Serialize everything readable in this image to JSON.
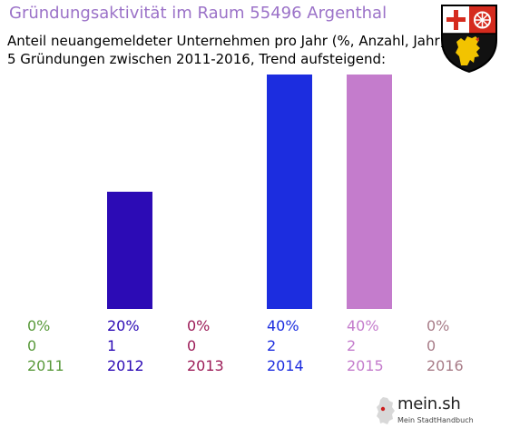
{
  "header": {
    "title": "Gründungsaktivität im Raum 55496 Argenthal",
    "subtitle_line1": "Anteil neuangemeldeter Unternehmen pro Jahr (%, Anzahl, Jahr)",
    "subtitle_line2": "5 Gründungen zwischen 2011-2016, Trend aufsteigend:"
  },
  "crest": {
    "icon": "rhineland-palatinate-coat-of-arms-icon"
  },
  "chart_data": {
    "type": "bar",
    "title": "Gründungsaktivität im Raum 55496 Argenthal",
    "categories": [
      "2011",
      "2012",
      "2013",
      "2014",
      "2015",
      "2016"
    ],
    "values": [
      0,
      1,
      0,
      2,
      2,
      0
    ],
    "percent_labels": [
      "0%",
      "20%",
      "0%",
      "40%",
      "40%",
      "0%"
    ],
    "count_labels": [
      "0",
      "1",
      "0",
      "2",
      "2",
      "0"
    ],
    "bar_colors": [
      "#5a9a3c",
      "#2c0bb5",
      "#9c1c58",
      "#1c2ddf",
      "#c47ccc",
      "#a87c88"
    ],
    "ylim": [
      0,
      2
    ],
    "grid": false,
    "legend": "none"
  },
  "logo": {
    "name": "mein.sh",
    "tagline": "Mein StadtHandbuch"
  }
}
